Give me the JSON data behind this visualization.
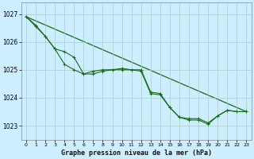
{
  "background_color": "#cceeff",
  "plot_bg_color": "#cceeff",
  "grid_color": "#aacccc",
  "line_color": "#1a6b1a",
  "marker_color": "#1a6b1a",
  "title": "Graphe pression niveau de la mer (hPa)",
  "ylim": [
    1022.5,
    1027.4
  ],
  "xlim": [
    -0.5,
    23.5
  ],
  "yticks": [
    1023,
    1024,
    1025,
    1026,
    1027
  ],
  "xticks": [
    0,
    1,
    2,
    3,
    4,
    5,
    6,
    7,
    8,
    9,
    10,
    11,
    12,
    13,
    14,
    15,
    16,
    17,
    18,
    19,
    20,
    21,
    22,
    23
  ],
  "line1": [
    1026.9,
    1026.55,
    1026.2,
    1025.75,
    1025.2,
    1025.0,
    1024.85,
    1024.95,
    1025.0,
    1025.0,
    1025.05,
    1025.0,
    1025.0,
    1024.2,
    1024.15,
    1023.65,
    1023.3,
    1023.25,
    1023.25,
    1023.1,
    1023.35,
    1023.55,
    1023.5,
    1023.5
  ],
  "line2": [
    1026.9,
    1026.6,
    1026.2,
    1025.75,
    1025.65,
    1025.45,
    1024.85,
    1024.85,
    1024.95,
    1025.0,
    1025.0,
    1025.0,
    1024.95,
    1024.15,
    1024.1,
    1023.65,
    1023.3,
    1023.2,
    1023.2,
    1023.05,
    1023.35,
    1023.55,
    1023.5,
    1023.5
  ],
  "line3_x": [
    0,
    23
  ],
  "line3_y": [
    1026.9,
    1023.5
  ]
}
